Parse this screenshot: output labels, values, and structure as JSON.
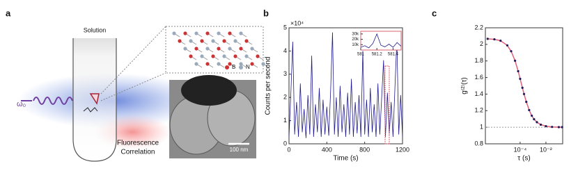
{
  "figure": {
    "panel_labels": [
      "a",
      "b",
      "c"
    ]
  },
  "panel_a": {
    "solution": "Solution",
    "omega": "ω₀",
    "boron": "B",
    "nitrogen": "N",
    "scale_bar": "100 nm",
    "caption_line1": "Fluorescence",
    "caption_line2": "Correlation"
  },
  "chart_data": [
    {
      "type": "line",
      "xlabel": "Time (s)",
      "ylabel": "Counts per second",
      "y_scale_label": "×10⁴",
      "xlim": [
        0,
        1200
      ],
      "xticks": [
        0,
        400,
        800,
        1200
      ],
      "ylim": [
        0,
        50000
      ],
      "yticks": [
        0,
        {
          "value": 10000,
          "label": "1"
        },
        {
          "value": 20000,
          "label": "2"
        },
        {
          "value": 30000,
          "label": "3"
        },
        {
          "value": 40000,
          "label": "4"
        },
        {
          "value": 50000,
          "label": "5"
        }
      ],
      "x": [
        0,
        20,
        40,
        60,
        80,
        100,
        120,
        140,
        160,
        180,
        200,
        220,
        240,
        260,
        280,
        300,
        320,
        340,
        360,
        380,
        400,
        420,
        440,
        460,
        480,
        500,
        520,
        540,
        560,
        580,
        600,
        620,
        640,
        660,
        680,
        700,
        720,
        740,
        760,
        780,
        800,
        820,
        840,
        860,
        880,
        900,
        920,
        940,
        960,
        980,
        1000,
        1020,
        1040,
        1060,
        1080,
        1100,
        1120,
        1140,
        1160,
        1180,
        1200
      ],
      "series": [
        {
          "color": "#1f1a8a",
          "style": "line",
          "values": [
            3000,
            22000,
            44000,
            4000,
            18000,
            3000,
            26000,
            5000,
            15000,
            2500,
            21000,
            4000,
            38000,
            3000,
            17000,
            5000,
            24000,
            3000,
            19000,
            4000,
            16000,
            3500,
            23000,
            48000,
            4000,
            20000,
            3000,
            25000,
            5000,
            17000,
            3000,
            22000,
            4000,
            28000,
            3000,
            18000,
            4500,
            21000,
            3000,
            40000,
            4000,
            19000,
            3000,
            24000,
            5000,
            17000,
            3000,
            26000,
            4000,
            20000,
            36000,
            3000,
            22000,
            4000,
            18000,
            3000,
            24000,
            45000,
            4000,
            21000,
            3000
          ]
        }
      ]
    },
    {
      "type": "line",
      "xlim": [
        581,
        581.5
      ],
      "xticks": [
        581,
        581.2,
        581.4
      ],
      "ylim": [
        0,
        35000
      ],
      "yticks": [
        {
          "value": 10000,
          "label": "10k"
        },
        {
          "value": 20000,
          "label": "20k"
        },
        {
          "value": 30000,
          "label": "30k"
        }
      ],
      "x": [
        581,
        581.05,
        581.1,
        581.15,
        581.2,
        581.25,
        581.3,
        581.35,
        581.4,
        581.45,
        581.5
      ],
      "series": [
        {
          "color": "#1f1a8a",
          "style": "line",
          "values": [
            5000,
            8000,
            4000,
            12000,
            30000,
            9000,
            6000,
            11000,
            5000,
            14000,
            7000
          ]
        }
      ]
    },
    {
      "type": "line",
      "xlabel": "τ (s)",
      "ylabel": "g⁽²⁾(τ)",
      "log_x": true,
      "xlim": [
        2e-07,
        0.2
      ],
      "xticks": [
        {
          "value": 0.0001,
          "label": "10⁻⁴"
        },
        {
          "value": 0.01,
          "label": "10⁻²"
        }
      ],
      "ylim": [
        0.8,
        2.2
      ],
      "yticks": [
        0.8,
        1,
        1.2,
        1.4,
        1.6,
        1.8,
        2,
        2.2
      ],
      "reference_line": 1,
      "x": [
        3e-07,
        1e-06,
        3e-06,
        1e-05,
        2e-05,
        4e-05,
        7e-05,
        0.0001,
        0.00015,
        0.0002,
        0.0003,
        0.0005,
        0.0008,
        0.0012,
        0.002,
        0.004,
        0.01,
        0.03,
        0.1,
        0.18
      ],
      "series": [
        {
          "color": "#e0607a",
          "style": "line",
          "values": [
            2.067,
            2.061,
            2.044,
            1.988,
            1.917,
            1.803,
            1.676,
            1.584,
            1.476,
            1.401,
            1.306,
            1.207,
            1.139,
            1.097,
            1.061,
            1.031,
            1.013,
            1.004,
            1.001,
            1.001
          ]
        },
        {
          "color": "#1f1a5a",
          "style": "dots",
          "values": [
            2.067,
            2.061,
            2.044,
            1.988,
            1.917,
            1.803,
            1.676,
            1.584,
            1.476,
            1.401,
            1.306,
            1.207,
            1.139,
            1.097,
            1.061,
            1.031,
            1.013,
            1.004,
            1.001,
            1.001
          ]
        }
      ]
    }
  ]
}
